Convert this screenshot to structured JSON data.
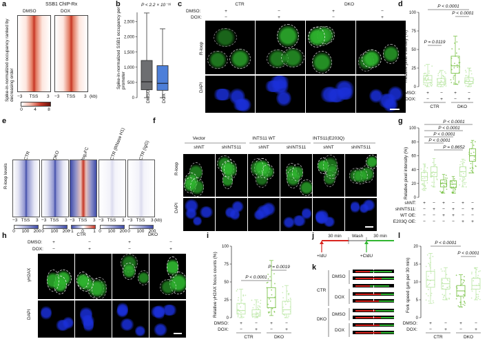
{
  "colors": {
    "dmso": "#6d6e71",
    "dox": "#4d7fd9",
    "ctr": "#bde7a8",
    "dko": "#7cc34a",
    "loopGreen": "#2fb52f",
    "dapiBlue": "#1a2fd9",
    "heatRed": "#c63626",
    "heatBlue": "#3d4aa8",
    "fiberRed": "#d9231d",
    "fiberGreen": "#2fb52f"
  },
  "panels": {
    "a": {
      "label": "a",
      "title": "SSB1 ChIP-Rx",
      "ylabel": "Spike-in-normalized occupancy ranked by decreasing order",
      "heatmaps": [
        "DMSO",
        "DOX"
      ],
      "xticks": [
        "−3",
        "TSS",
        "3"
      ],
      "xunit": "(kb)",
      "scale": [
        "0",
        "4",
        "8"
      ]
    },
    "b": {
      "label": "b",
      "pval": "P < 2.2 × 10⁻¹⁶",
      "ylabel": "Spike-in-normalized SSB1 occupancy per promoter",
      "yticks": [
        "0",
        "500",
        "1,000",
        "1,500",
        "2,000",
        "2,500"
      ],
      "groups": [
        "DMSO",
        "DOX"
      ]
    },
    "c": {
      "label": "c",
      "conditions": [
        "CTR",
        "DKO"
      ],
      "rows": [
        "DMSO:",
        "DOX:"
      ],
      "signs": [
        "+",
        "−",
        "+",
        "−",
        "−",
        "+",
        "−",
        "+"
      ],
      "stains": [
        "R-loop",
        "DAPI"
      ]
    },
    "d": {
      "label": "d",
      "ylabel": "Relative pixel intensity (%)",
      "yticks": [
        "0",
        "25",
        "50",
        "75",
        "100"
      ],
      "p": [
        "P < 0.0001",
        "P < 0.0001",
        "P = 0.0119"
      ],
      "rows": [
        "DMSO:",
        "DOX:"
      ],
      "signs": [
        "+",
        "−",
        "+",
        "−",
        "−",
        "+",
        "−",
        "+"
      ],
      "groups": [
        "CTR",
        "DKO"
      ]
    },
    "e": {
      "label": "e",
      "ylabel": "R-loop levels",
      "columns": [
        "CTR",
        "DKO",
        "log₂FC",
        "CTR (RNase H1)",
        "CTR (IgG)"
      ],
      "xticks": [
        "−3",
        "TSS",
        "3"
      ],
      "xunit": "(kb)",
      "scales": [
        [
          "0",
          "100",
          "200"
        ],
        [
          "0",
          "100",
          "200"
        ],
        [
          "−1",
          "0",
          "1"
        ],
        [
          "0",
          "100",
          "200"
        ],
        [
          "0",
          "100",
          "200"
        ]
      ]
    },
    "f": {
      "label": "f",
      "constructs": [
        "Vector",
        "INTS11 WT",
        "INTS11(E203Q)"
      ],
      "sh": [
        "shNT",
        "shINTS11",
        "shNT",
        "shINTS11",
        "shNT",
        "shINTS11"
      ],
      "stains": [
        "R-loop",
        "DAPI"
      ]
    },
    "g": {
      "label": "g",
      "ylabel": "Relative pixel intensity (%)",
      "yticks": [
        "0",
        "20",
        "40",
        "60",
        "80",
        "100"
      ],
      "p": [
        "P < 0.0001",
        "P < 0.0001",
        "P < 0.0001",
        "P < 0.0001",
        "P = 0.8652"
      ],
      "rows": [
        "shNT:",
        "shINTS11:",
        "WT OE:",
        "E203Q OE:"
      ],
      "signs": [
        [
          "+",
          "−",
          "+",
          "−",
          "+",
          "−"
        ],
        [
          "−",
          "+",
          "−",
          "+",
          "−",
          "+"
        ],
        [
          "−",
          "−",
          "+",
          "+",
          "−",
          "−"
        ],
        [
          "−",
          "−",
          "−",
          "−",
          "+",
          "+"
        ]
      ]
    },
    "h": {
      "label": "h",
      "conditions": [
        "CTR",
        "DKO"
      ],
      "rows": [
        "DMSO:",
        "DOX:"
      ],
      "signs": [
        "+",
        "−",
        "+",
        "−",
        "−",
        "+",
        "−",
        "+"
      ],
      "stains": [
        "γH2AX",
        "DAPI"
      ]
    },
    "i": {
      "label": "i",
      "ylabel": "Relative γH2AX focus counts (%)",
      "yticks": [
        "0",
        "25",
        "50",
        "75",
        "100"
      ],
      "p": [
        "P = 0.0019",
        "P < 0.0001"
      ],
      "rows": [
        "DMSO:",
        "DOX:"
      ],
      "signs": [
        "+",
        "−",
        "+",
        "−",
        "−",
        "+",
        "−",
        "+"
      ],
      "groups": [
        "CTR",
        "DKO"
      ]
    },
    "j": {
      "label": "j",
      "segments": [
        "30 min",
        "Wash",
        "30 min"
      ],
      "pulses": [
        "+IdU",
        "+CldU"
      ]
    },
    "k": {
      "label": "k",
      "groups": [
        "CTR",
        "DKO"
      ],
      "treat": [
        "DMSO",
        "DOX",
        "DMSO",
        "DOX"
      ]
    },
    "l": {
      "label": "l",
      "ylabel": "Fork speed (μm per 30 min)",
      "yticks": [
        "0",
        "5",
        "10",
        "15",
        "20"
      ],
      "p": [
        "P < 0.0001",
        "P < 0.0001"
      ],
      "rows": [
        "DMSO:",
        "DOX:"
      ],
      "signs": [
        "+",
        "−",
        "+",
        "−",
        "−",
        "+",
        "−",
        "+"
      ],
      "groups": [
        "CTR",
        "DKO"
      ]
    }
  },
  "chart_data": [
    {
      "panel": "b",
      "type": "box",
      "categories": [
        "DMSO",
        "DOX"
      ],
      "series": [
        {
          "name": "DMSO",
          "min": 0,
          "q1": 260,
          "median": 520,
          "q3": 1220,
          "max": 2780
        },
        {
          "name": "DOX",
          "min": 0,
          "q1": 240,
          "median": 470,
          "q3": 1050,
          "max": 2260
        }
      ],
      "ylim": [
        0,
        2800
      ],
      "ylabel": "Spike-in-normalized SSB1 occupancy per promoter"
    },
    {
      "panel": "d",
      "type": "box",
      "categories": [
        "CTR DMSO",
        "CTR DOX",
        "DKO DMSO",
        "DKO DOX"
      ],
      "series": [
        {
          "min": 0,
          "q1": 5,
          "median": 9,
          "q3": 15,
          "max": 30
        },
        {
          "min": 0,
          "q1": 3,
          "median": 6,
          "q3": 11,
          "max": 22
        },
        {
          "min": 3,
          "q1": 18,
          "median": 28,
          "q3": 41,
          "max": 68
        },
        {
          "min": 0,
          "q1": 4,
          "median": 7,
          "q3": 12,
          "max": 25
        }
      ],
      "ylim": [
        0,
        100
      ],
      "ylabel": "Relative pixel intensity (%)"
    },
    {
      "panel": "g",
      "type": "box",
      "categories": [
        "shNT",
        "shINTS11",
        "shNT WT OE",
        "shINTS11 WT OE",
        "shNT E203Q OE",
        "shINTS11 E203Q OE"
      ],
      "series": [
        {
          "min": 10,
          "q1": 24,
          "median": 30,
          "q3": 36,
          "max": 48
        },
        {
          "min": 15,
          "q1": 30,
          "median": 36,
          "q3": 44,
          "max": 56
        },
        {
          "min": 6,
          "q1": 15,
          "median": 20,
          "q3": 25,
          "max": 33
        },
        {
          "min": 6,
          "q1": 14,
          "median": 19,
          "q3": 24,
          "max": 30
        },
        {
          "min": 15,
          "q1": 30,
          "median": 37,
          "q3": 44,
          "max": 55
        },
        {
          "min": 35,
          "q1": 52,
          "median": 60,
          "q3": 70,
          "max": 82
        }
      ],
      "ylim": [
        0,
        100
      ],
      "ylabel": "Relative pixel intensity (%)"
    },
    {
      "panel": "i",
      "type": "box",
      "categories": [
        "CTR DMSO",
        "CTR DOX",
        "DKO DMSO",
        "DKO DOX"
      ],
      "series": [
        {
          "min": 0,
          "q1": 5,
          "median": 10,
          "q3": 20,
          "max": 40
        },
        {
          "min": 0,
          "q1": 2,
          "median": 5,
          "q3": 11,
          "max": 25
        },
        {
          "min": 3,
          "q1": 14,
          "median": 28,
          "q3": 42,
          "max": 80
        },
        {
          "min": 0,
          "q1": 5,
          "median": 11,
          "q3": 23,
          "max": 45
        }
      ],
      "ylim": [
        0,
        100
      ],
      "ylabel": "Relative γH2AX focus counts (%)"
    },
    {
      "panel": "l",
      "type": "box",
      "categories": [
        "CTR DMSO",
        "CTR DOX",
        "DKO DMSO",
        "DKO DOX"
      ],
      "series": [
        {
          "min": 4,
          "q1": 8.5,
          "median": 10.5,
          "q3": 13,
          "max": 18
        },
        {
          "min": 5,
          "q1": 8,
          "median": 9.5,
          "q3": 11,
          "max": 14
        },
        {
          "min": 3,
          "q1": 6,
          "median": 7.5,
          "q3": 9,
          "max": 12
        },
        {
          "min": 5,
          "q1": 8,
          "median": 9,
          "q3": 11,
          "max": 14
        }
      ],
      "ylim": [
        0,
        20
      ],
      "ylabel": "Fork speed (μm per 30 min)"
    }
  ]
}
